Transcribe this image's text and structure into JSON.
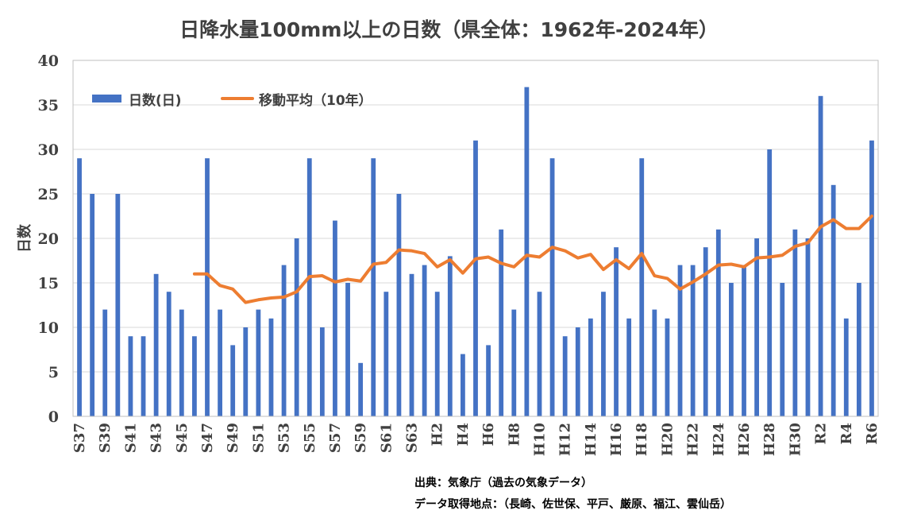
{
  "chart_data": {
    "type": "bar",
    "title": "日降水量100mm以上の日数（県全体：1962年-2024年）",
    "xlabel": "",
    "ylabel": "日数",
    "ylim": [
      0,
      40
    ],
    "yticks": [
      "0",
      "5",
      "10",
      "15",
      "20",
      "25",
      "30",
      "35",
      "40"
    ],
    "grid": true,
    "legend_position": "top-left",
    "categories": [
      "S37",
      "S38",
      "S39",
      "S40",
      "S41",
      "S42",
      "S43",
      "S44",
      "S45",
      "S46",
      "S47",
      "S48",
      "S49",
      "S50",
      "S51",
      "S52",
      "S53",
      "S54",
      "S55",
      "S56",
      "S57",
      "S58",
      "S59",
      "S60",
      "S61",
      "S62",
      "S63",
      "H1",
      "H2",
      "H3",
      "H4",
      "H5",
      "H6",
      "H7",
      "H8",
      "H9",
      "H10",
      "H11",
      "H12",
      "H13",
      "H14",
      "H15",
      "H16",
      "H17",
      "H18",
      "H19",
      "H20",
      "H21",
      "H22",
      "H23",
      "H24",
      "H25",
      "H26",
      "H27",
      "H28",
      "H29",
      "H30",
      "R1",
      "R2",
      "R3",
      "R4",
      "R5",
      "R6"
    ],
    "x_tick_labels": [
      "S37",
      "S39",
      "S41",
      "S43",
      "S45",
      "S47",
      "S49",
      "S51",
      "S53",
      "S55",
      "S57",
      "S59",
      "S61",
      "S63",
      "H2",
      "H4",
      "H6",
      "H8",
      "H10",
      "H12",
      "H14",
      "H16",
      "H18",
      "H20",
      "H22",
      "H24",
      "H26",
      "H28",
      "H30",
      "R2",
      "R4",
      "R6"
    ],
    "series": [
      {
        "name": "日数(日)",
        "type": "bar",
        "color": "#4472C4",
        "values": [
          29,
          25,
          12,
          25,
          9,
          9,
          16,
          14,
          12,
          9,
          29,
          12,
          8,
          10,
          12,
          11,
          17,
          20,
          29,
          10,
          22,
          15,
          6,
          29,
          14,
          25,
          16,
          17,
          14,
          18,
          7,
          31,
          8,
          21,
          12,
          37,
          14,
          29,
          9,
          10,
          11,
          14,
          19,
          11,
          29,
          12,
          11,
          17,
          17,
          19,
          21,
          15,
          17,
          20,
          30,
          15,
          21,
          20,
          36,
          26,
          11,
          15,
          31
        ]
      },
      {
        "name": "移動平均（10年）",
        "type": "line",
        "color": "#ED7D31",
        "values": [
          null,
          null,
          null,
          null,
          null,
          null,
          null,
          null,
          null,
          16.0,
          16.0,
          14.7,
          14.3,
          12.8,
          13.1,
          13.3,
          13.4,
          14.0,
          15.7,
          15.8,
          15.1,
          15.4,
          15.2,
          17.1,
          17.3,
          18.7,
          18.6,
          18.3,
          16.8,
          17.6,
          16.1,
          17.7,
          17.9,
          17.2,
          16.8,
          18.1,
          17.9,
          19.0,
          18.6,
          17.8,
          18.2,
          16.5,
          17.6,
          16.6,
          18.3,
          15.8,
          15.5,
          14.3,
          15.1,
          16.0,
          17.0,
          17.1,
          16.8,
          17.8,
          17.9,
          18.1,
          19.1,
          19.5,
          21.3,
          22.1,
          21.1,
          21.1,
          22.5
        ]
      }
    ]
  },
  "footer": {
    "source": "出典：気象庁（過去の気象データ）",
    "locations": "データ取得地点：（長崎、佐世保、平戸、厳原、福江、雲仙岳）"
  }
}
